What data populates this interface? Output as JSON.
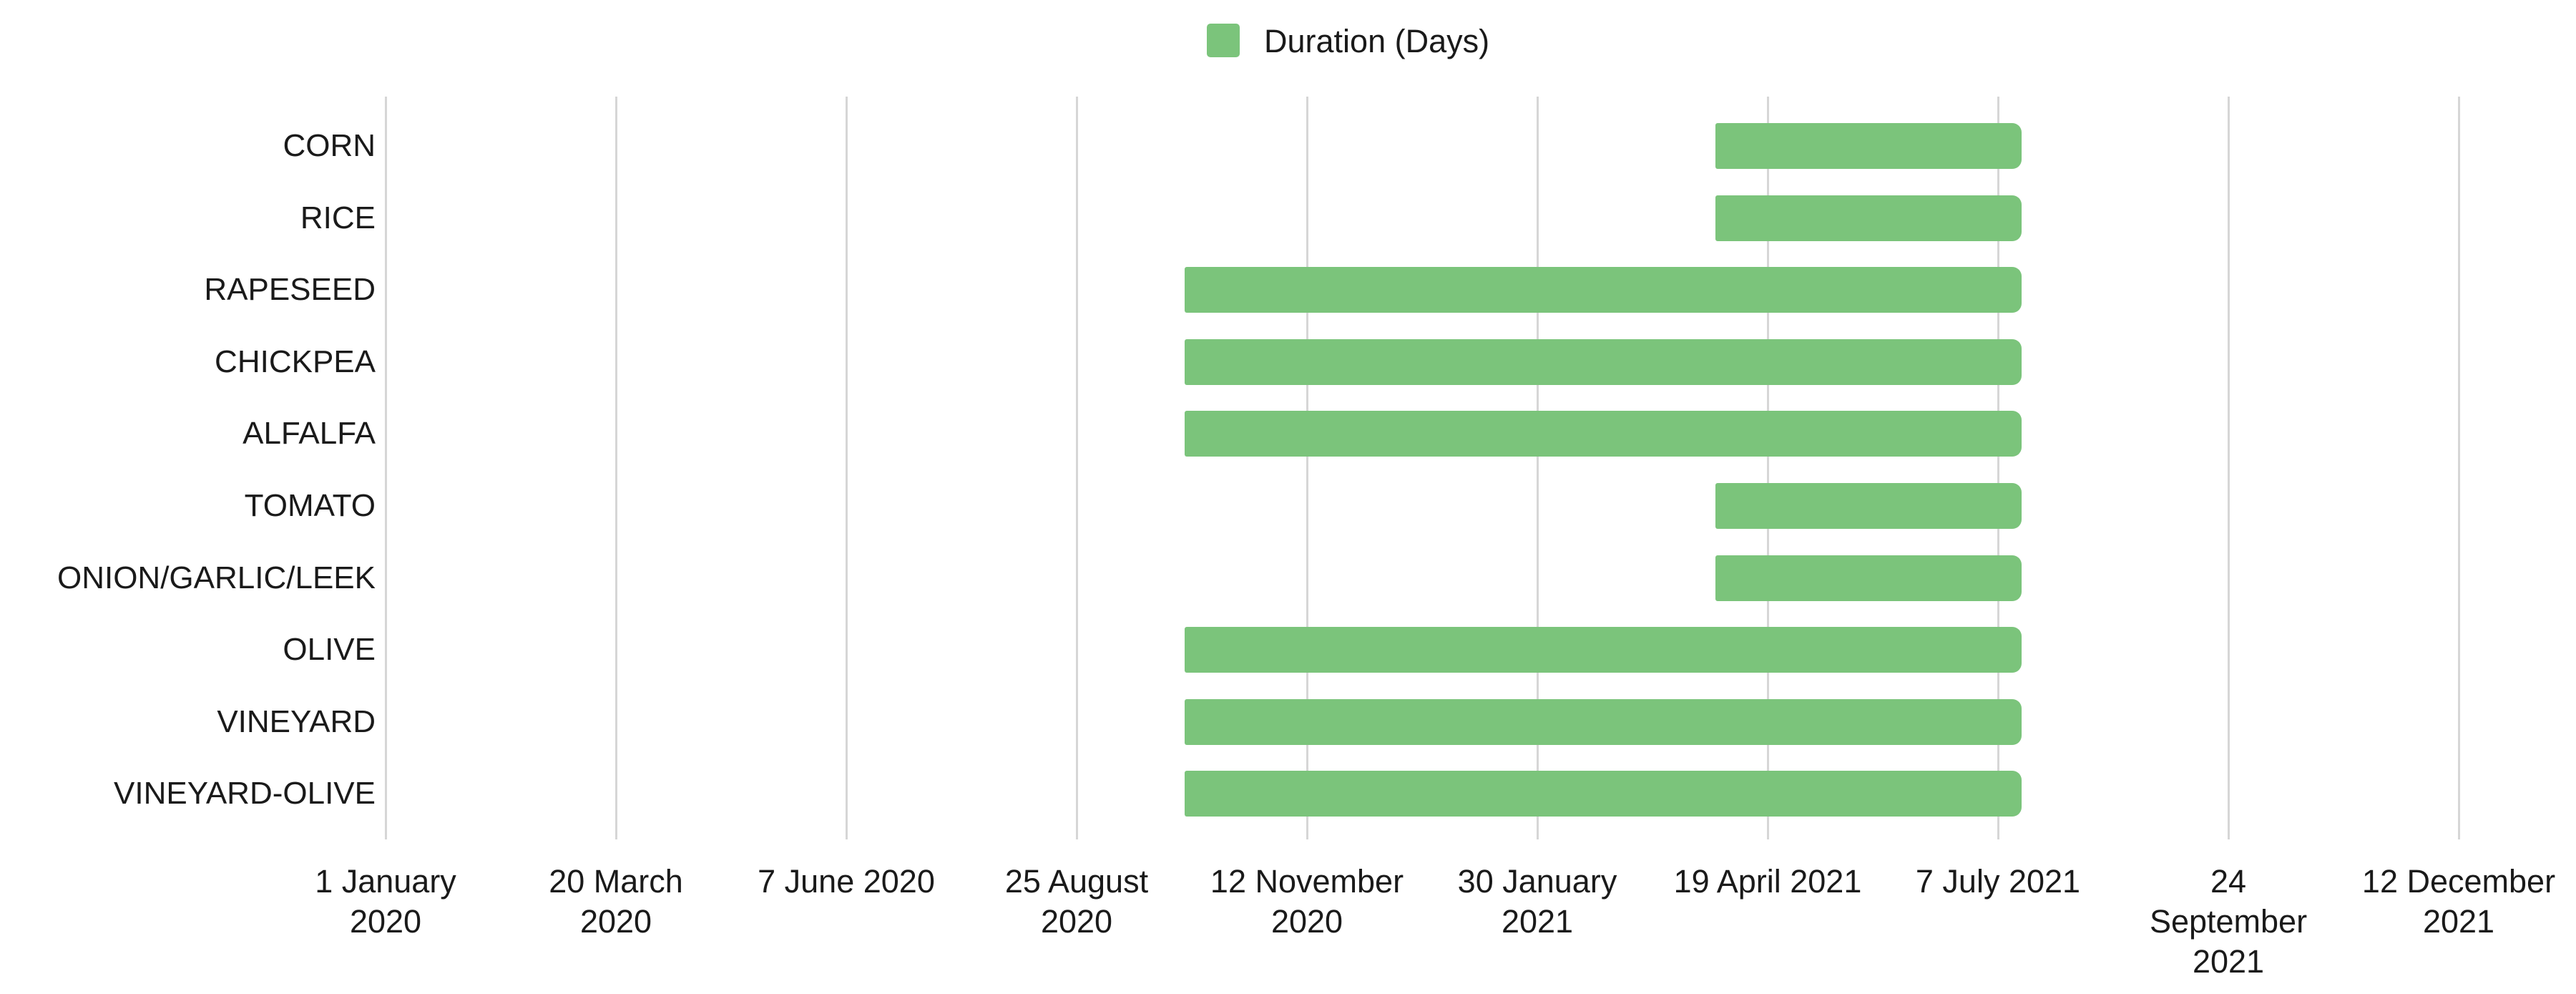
{
  "chart_data": {
    "type": "bar",
    "subtype": "horizontal-gantt-range",
    "title": "",
    "legend": {
      "label": "Duration (Days)",
      "position": "top",
      "swatch_color": "#7BC47B"
    },
    "categories": [
      "CORN",
      "RICE",
      "RAPESEED",
      "CHICKPEA",
      "ALFALFA",
      "TOMATO",
      "ONION/GARLIC/LEEK",
      "OLIVE",
      "VINEYARD",
      "VINEYARD-OLIVE"
    ],
    "series": [
      {
        "name": "Duration (Days)",
        "color": "#7BC47B",
        "bars": [
          {
            "category": "CORN",
            "start": "2021-04-01",
            "end": "2021-07-15",
            "duration_days": 105
          },
          {
            "category": "RICE",
            "start": "2021-04-01",
            "end": "2021-07-15",
            "duration_days": 105
          },
          {
            "category": "RAPESEED",
            "start": "2020-10-01",
            "end": "2021-07-15",
            "duration_days": 287
          },
          {
            "category": "CHICKPEA",
            "start": "2020-10-01",
            "end": "2021-07-15",
            "duration_days": 287
          },
          {
            "category": "ALFALFA",
            "start": "2020-10-01",
            "end": "2021-07-15",
            "duration_days": 287
          },
          {
            "category": "TOMATO",
            "start": "2021-04-01",
            "end": "2021-07-15",
            "duration_days": 105
          },
          {
            "category": "ONION/GARLIC/LEEK",
            "start": "2021-04-01",
            "end": "2021-07-15",
            "duration_days": 105
          },
          {
            "category": "OLIVE",
            "start": "2020-10-01",
            "end": "2021-07-15",
            "duration_days": 287
          },
          {
            "category": "VINEYARD",
            "start": "2020-10-01",
            "end": "2021-07-15",
            "duration_days": 287
          },
          {
            "category": "VINEYARD-OLIVE",
            "start": "2020-10-01",
            "end": "2021-07-15",
            "duration_days": 287
          }
        ]
      }
    ],
    "x_axis": {
      "type": "date",
      "tick_interval_days": 79,
      "ticks": [
        {
          "date": "2020-01-01",
          "label": "1 January 2020",
          "lines": [
            "1 January",
            "2020"
          ]
        },
        {
          "date": "2020-03-20",
          "label": "20 March 2020",
          "lines": [
            "20 March",
            "2020"
          ]
        },
        {
          "date": "2020-06-07",
          "label": "7 June 2020",
          "lines": [
            "7 June 2020"
          ]
        },
        {
          "date": "2020-08-25",
          "label": "25 August 2020",
          "lines": [
            "25 August",
            "2020"
          ]
        },
        {
          "date": "2020-11-12",
          "label": "12 November 2020",
          "lines": [
            "12 November",
            "2020"
          ]
        },
        {
          "date": "2021-01-30",
          "label": "30 January 2021",
          "lines": [
            "30 January",
            "2021"
          ]
        },
        {
          "date": "2021-04-19",
          "label": "19 April 2021",
          "lines": [
            "19 April 2021"
          ]
        },
        {
          "date": "2021-07-07",
          "label": "7 July 2021",
          "lines": [
            "7 July 2021"
          ]
        },
        {
          "date": "2021-09-24",
          "label": "24 September 2021",
          "lines": [
            "24",
            "September",
            "2021"
          ]
        },
        {
          "date": "2021-12-12",
          "label": "12 December 2021",
          "lines": [
            "12 December",
            "2021"
          ]
        }
      ]
    },
    "y_axis": {
      "label_align": "right"
    },
    "grid": true,
    "legend_position": "top",
    "colors": {
      "bar": "#7BC47B",
      "gridline": "#D6D6D6",
      "text": "#1A1A1A",
      "background": "#FFFFFF"
    }
  }
}
